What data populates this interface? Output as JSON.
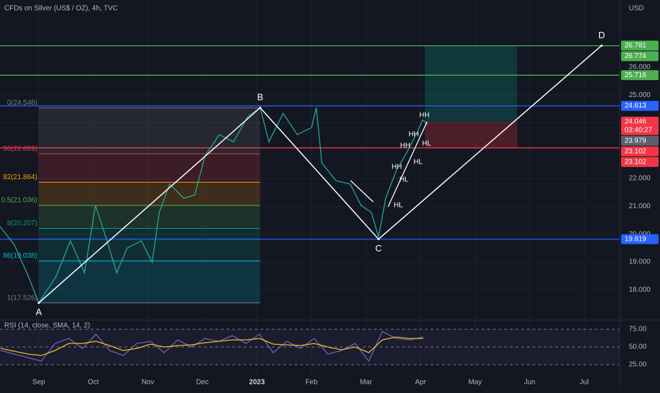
{
  "chart_data": [
    {
      "type": "line",
      "title": "CFDs on Silver (US$ / OZ), 4h, TVC",
      "currency": "USD",
      "xlim": [
        -0.71,
        10.65
      ],
      "ylim": [
        16.96,
        28.42
      ],
      "xticks": [
        {
          "value": 0,
          "label": "Sep"
        },
        {
          "value": 1,
          "label": "Oct"
        },
        {
          "value": 2,
          "label": "Nov"
        },
        {
          "value": 3,
          "label": "Dec"
        },
        {
          "value": 4,
          "label": "2023"
        },
        {
          "value": 5,
          "label": "Feb"
        },
        {
          "value": 6,
          "label": "Mar"
        },
        {
          "value": 7,
          "label": "Apr"
        },
        {
          "value": 8,
          "label": "May"
        },
        {
          "value": 9,
          "label": "Jun"
        },
        {
          "value": 10,
          "label": "Jul"
        }
      ],
      "yticks": [
        {
          "value": 18,
          "label": "18.000"
        },
        {
          "value": 19,
          "label": "19.000"
        },
        {
          "value": 20,
          "label": "20.000"
        },
        {
          "value": 21,
          "label": "21.000"
        },
        {
          "value": 22,
          "label": "22.000"
        },
        {
          "value": 24,
          "label": "24.000"
        },
        {
          "value": 25,
          "label": "25.000"
        },
        {
          "value": 26,
          "label": "26.000"
        }
      ],
      "grid": true,
      "x": [
        -0.71,
        -0.45,
        -0.19,
        0,
        0.32,
        0.58,
        0.84,
        1.04,
        1.23,
        1.43,
        1.62,
        1.88,
        2.08,
        2.21,
        2.4,
        2.66,
        2.86,
        3.05,
        3.31,
        3.57,
        3.83,
        4.06,
        4.22,
        4.48,
        4.74,
        5.0,
        5.09,
        5.19,
        5.45,
        5.71,
        5.91,
        6.1,
        6.23,
        6.36,
        6.56,
        6.75,
        6.95,
        7.04,
        7.12
      ],
      "series": [
        {
          "name": "Silver",
          "color": "#26a69a",
          "values": [
            20.27,
            19.63,
            18.48,
            17.53,
            18.48,
            19.76,
            18.61,
            21.03,
            19.89,
            18.61,
            19.5,
            19.76,
            18.99,
            20.78,
            21.8,
            21.29,
            21.41,
            22.82,
            23.58,
            23.32,
            24.22,
            24.55,
            23.32,
            24.34,
            23.58,
            23.83,
            24.55,
            22.56,
            21.92,
            21.8,
            21.03,
            20.78,
            19.89,
            21.29,
            22.31,
            22.94,
            23.71,
            24.11,
            23.96
          ]
        }
      ],
      "levels": [
        {
          "value": 26.774,
          "color": "#4caf50"
        },
        {
          "value": 25.716,
          "color": "#4caf50"
        },
        {
          "value": 24.613,
          "color": "#2962ff"
        },
        {
          "value": 23.102,
          "color": "#f23645"
        },
        {
          "value": 19.819,
          "color": "#2962ff"
        }
      ],
      "price_labels": [
        {
          "value": 26.781,
          "color": "#4caf50"
        },
        {
          "value": 26.774,
          "color": "#4caf50"
        },
        {
          "value": 25.716,
          "color": "#4caf50"
        },
        {
          "value": 24.613,
          "color": "#2962ff"
        },
        {
          "value": 24.046,
          "color": "#f23645",
          "timer": "03:40:27"
        },
        {
          "value": 23.979,
          "color": "#5d606b"
        },
        {
          "value": 23.102,
          "color": "#f23645"
        },
        {
          "value": 23.102,
          "color": "#f23645"
        },
        {
          "value": 19.819,
          "color": "#2962ff"
        }
      ],
      "fib": {
        "x": [
          0,
          4.06
        ],
        "levels": [
          {
            "label": "0(24.546)",
            "value": 24.546,
            "color": "#787b86"
          },
          {
            "label": "36(22.889)",
            "value": 22.889,
            "color": "#f23645"
          },
          {
            "label": "82(21.864)",
            "value": 21.864,
            "color": "#ff9800"
          },
          {
            "label": "0.5(21.036)",
            "value": 21.036,
            "color": "#4caf50"
          },
          {
            "label": "8(20.207)",
            "value": 20.207,
            "color": "#089981"
          },
          {
            "label": "86(19.038)",
            "value": 19.038,
            "color": "#00bcd4"
          },
          {
            "label": "1(17.526)",
            "value": 17.526,
            "color": "#787b86"
          }
        ]
      },
      "position": {
        "x": [
          7.08,
          8.77
        ],
        "target": 26.774,
        "entry": 24.046,
        "stop": 23.102
      },
      "waves": [
        {
          "label": "A",
          "x": 0,
          "y": 17.526
        },
        {
          "label": "B",
          "x": 4.06,
          "y": 24.546
        },
        {
          "label": "C",
          "x": 6.23,
          "y": 19.819
        },
        {
          "label": "D",
          "x": 10.32,
          "y": 26.781
        }
      ],
      "annotations": [
        "HH",
        "HH",
        "HH",
        "HH",
        "HL",
        "HL",
        "HL",
        "HL"
      ]
    },
    {
      "type": "line",
      "title": "RSI (14, close, SMA, 14, 2)",
      "ylim": [
        12,
        85
      ],
      "yticks": [
        {
          "value": 75,
          "label": "75.00"
        },
        {
          "value": 50,
          "label": "50.00"
        },
        {
          "value": 25,
          "label": "25.00"
        }
      ],
      "x": [
        -0.7,
        -0.45,
        -0.2,
        0.05,
        0.3,
        0.55,
        0.8,
        1.05,
        1.3,
        1.55,
        1.8,
        2.05,
        2.3,
        2.55,
        2.8,
        3.05,
        3.3,
        3.55,
        3.8,
        4.05,
        4.3,
        4.55,
        4.8,
        5.05,
        5.3,
        5.55,
        5.8,
        6.05,
        6.3,
        6.55,
        6.8,
        7.05
      ],
      "series": [
        {
          "name": "RSI",
          "color": "#7e57c2",
          "values": [
            45,
            40,
            35,
            30,
            55,
            62,
            48,
            68,
            45,
            38,
            55,
            58,
            42,
            60,
            50,
            62,
            58,
            66,
            55,
            68,
            42,
            58,
            48,
            62,
            40,
            45,
            55,
            30,
            72,
            62,
            60,
            64
          ]
        },
        {
          "name": "SMA",
          "color": "#e6c229",
          "values": [
            48,
            44,
            40,
            38,
            45,
            55,
            55,
            58,
            52,
            45,
            48,
            54,
            50,
            52,
            53,
            56,
            58,
            60,
            60,
            62,
            54,
            53,
            52,
            55,
            50,
            46,
            50,
            42,
            60,
            64,
            62,
            62
          ]
        }
      ]
    }
  ]
}
